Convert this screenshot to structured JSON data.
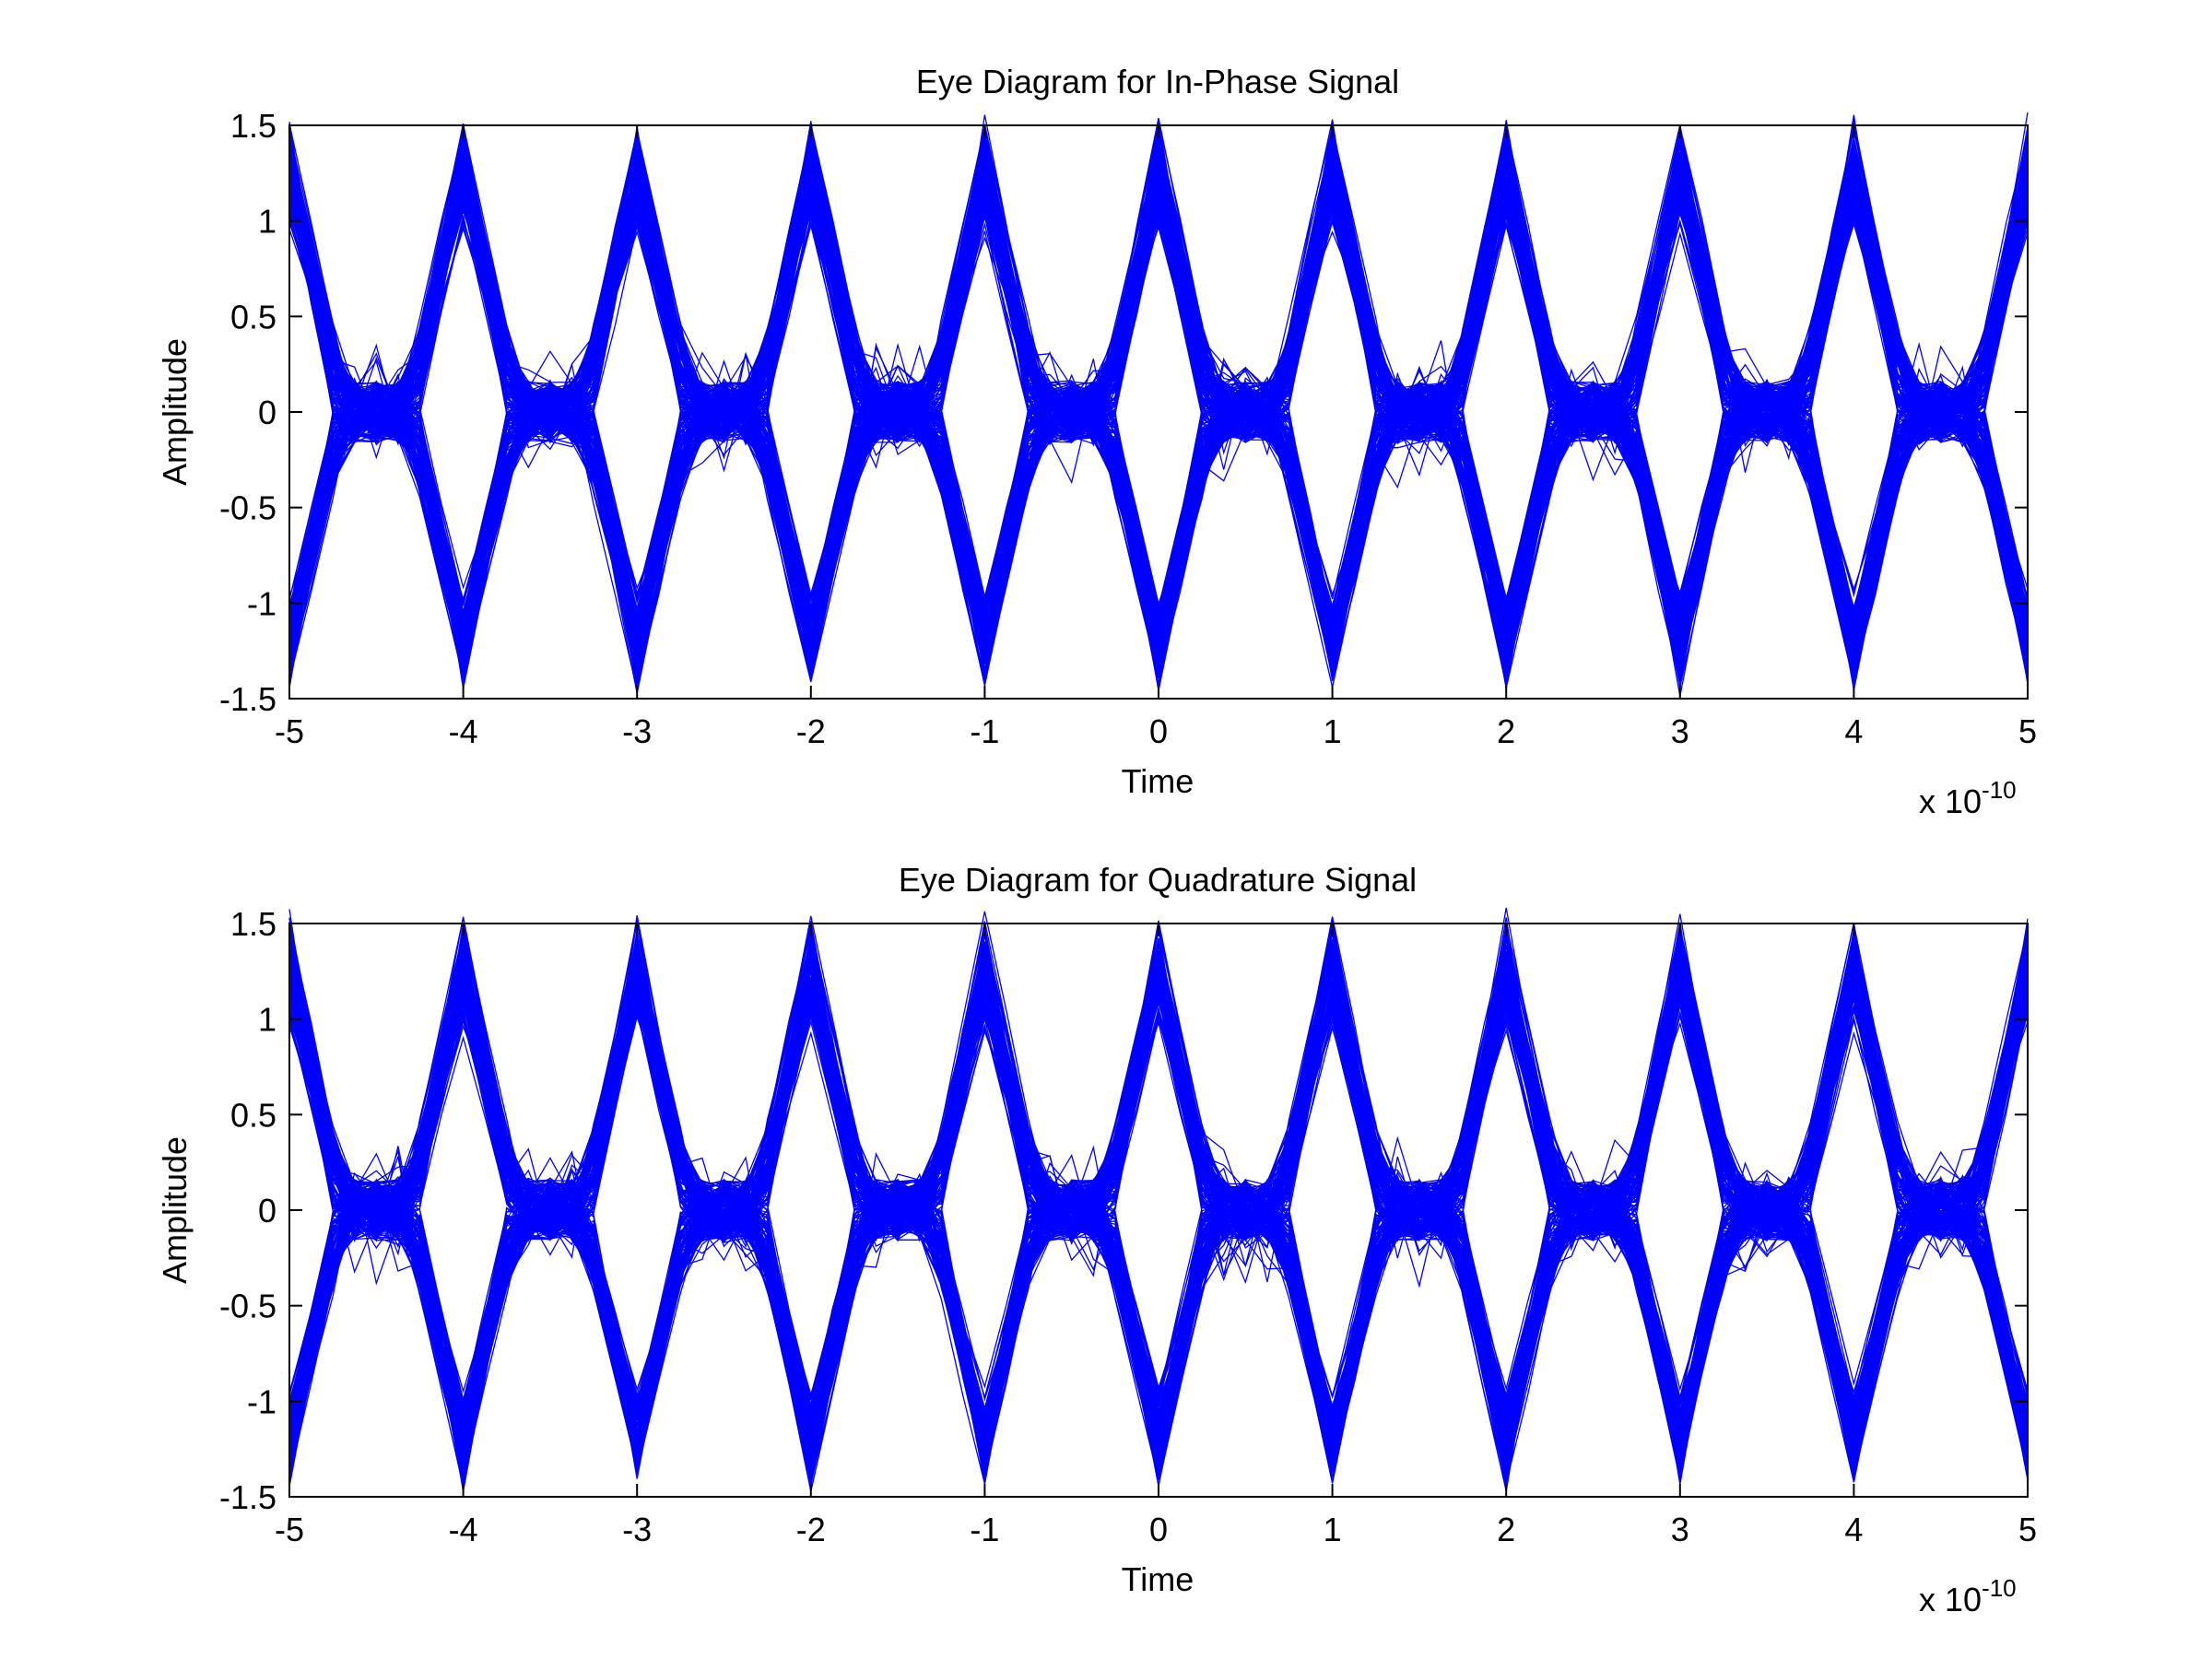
{
  "chart_data": [
    {
      "type": "line",
      "title": "Eye Diagram for In-Phase Signal",
      "xlabel": "Time",
      "ylabel": "Amplitude",
      "x_multiplier_label": "x 10",
      "x_multiplier_exponent": "-10",
      "xlim": [
        -5,
        5
      ],
      "ylim": [
        -1.5,
        1.5
      ],
      "xticks": [
        -5,
        -4,
        -3,
        -2,
        -1,
        0,
        1,
        2,
        3,
        4,
        5
      ],
      "yticks": [
        -1.5,
        -1,
        -0.5,
        0,
        0.5,
        1,
        1.5
      ],
      "grid": false,
      "line_color": "#0000ff",
      "symbol_period": 1,
      "pulse_levels": [
        1,
        -1
      ],
      "peak_range": [
        1.1,
        1.4
      ],
      "trough_range": [
        -1.1,
        -1.3
      ],
      "trace_count": 220,
      "seed": 11
    },
    {
      "type": "line",
      "title": "Eye Diagram for Quadrature Signal",
      "xlabel": "Time",
      "ylabel": "Amplitude",
      "x_multiplier_label": "x 10",
      "x_multiplier_exponent": "-10",
      "xlim": [
        -5,
        5
      ],
      "ylim": [
        -1.5,
        1.5
      ],
      "xticks": [
        -5,
        -4,
        -3,
        -2,
        -1,
        0,
        1,
        2,
        3,
        4,
        5
      ],
      "yticks": [
        -1.5,
        -1,
        -0.5,
        0,
        0.5,
        1,
        1.5
      ],
      "grid": false,
      "line_color": "#0000ff",
      "symbol_period": 1,
      "pulse_levels": [
        1,
        -1
      ],
      "peak_range": [
        1.1,
        1.4
      ],
      "trough_range": [
        -1.1,
        -1.3
      ],
      "trace_count": 220,
      "seed": 29
    }
  ]
}
